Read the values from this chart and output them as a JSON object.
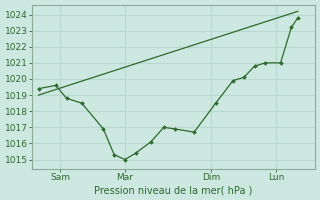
{
  "bg_color": "#cce8e0",
  "grid_color": "#b8d8d0",
  "line_color": "#2d6a2d",
  "marker_color": "#2d6a2d",
  "title": "Pression niveau de la mer( hPa )",
  "ylabel_ticks": [
    1015,
    1016,
    1017,
    1018,
    1019,
    1020,
    1021,
    1022,
    1023,
    1024
  ],
  "ylim": [
    1014.4,
    1024.6
  ],
  "xtick_labels": [
    "Sam",
    "Mar",
    "Dim",
    "Lun"
  ],
  "xtick_positions": [
    1,
    4,
    8,
    11
  ],
  "series1_x": [
    0,
    0.8,
    1.3,
    2.0,
    3.0,
    3.5,
    4.0,
    4.5,
    5.2,
    5.8,
    6.3,
    7.2,
    8.2,
    9.0,
    9.5,
    10.0,
    10.5,
    11.2,
    11.7,
    12.0
  ],
  "series1_y": [
    1019.4,
    1019.6,
    1018.8,
    1018.5,
    1016.9,
    1015.3,
    1015.0,
    1015.4,
    1016.1,
    1017.0,
    1016.9,
    1016.7,
    1018.5,
    1019.9,
    1020.1,
    1020.8,
    1021.0,
    1021.0,
    1023.2,
    1023.8
  ],
  "series2_x": [
    0,
    12.0
  ],
  "series2_y": [
    1019.0,
    1024.2
  ],
  "xlim": [
    -0.3,
    12.8
  ]
}
